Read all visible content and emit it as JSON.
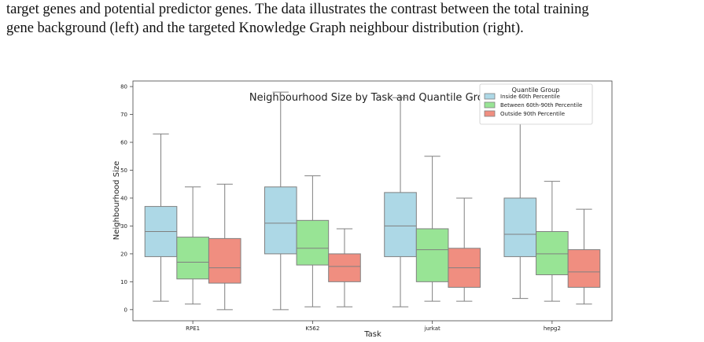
{
  "caption": {
    "line1": "target genes and potential predictor genes. The data illustrates the contrast between the total training",
    "line2": "gene background (left) and the targeted Knowledge Graph neighbour distribution (right)."
  },
  "colors": {
    "inside": "#add8e6",
    "between": "#98e495",
    "outside": "#f08e80",
    "box_edge": "#808080"
  },
  "chart_data": {
    "type": "box",
    "title": "Neighbourhood Size by Task and Quantile Group",
    "xlabel": "Task",
    "ylabel": "Neighbourhood Size",
    "ylim": [
      -4,
      82
    ],
    "yticks": [
      0,
      10,
      20,
      30,
      40,
      50,
      60,
      70,
      80
    ],
    "grid": false,
    "legend": {
      "title": "Quantile Group",
      "placement": "top-right"
    },
    "categories": [
      "RPE1",
      "K562",
      "jurkat",
      "hepg2"
    ],
    "series": [
      {
        "name": "Inside 60th Percentile",
        "color": "#add8e6",
        "boxes": [
          {
            "whislo": 3,
            "q1": 19,
            "med": 28,
            "q3": 37,
            "whishi": 63
          },
          {
            "whislo": 0,
            "q1": 20,
            "med": 31,
            "q3": 44,
            "whishi": 78
          },
          {
            "whislo": 1,
            "q1": 19,
            "med": 30,
            "q3": 42,
            "whishi": 76
          },
          {
            "whislo": 4,
            "q1": 19,
            "med": 27,
            "q3": 40,
            "whishi": 70
          }
        ]
      },
      {
        "name": "Between 60th-90th Percentile",
        "color": "#98e495",
        "boxes": [
          {
            "whislo": 2,
            "q1": 11,
            "med": 17,
            "q3": 26,
            "whishi": 44
          },
          {
            "whislo": 1,
            "q1": 16,
            "med": 22,
            "q3": 32,
            "whishi": 48
          },
          {
            "whislo": 3,
            "q1": 10,
            "med": 21.5,
            "q3": 29,
            "whishi": 55
          },
          {
            "whislo": 3,
            "q1": 12.5,
            "med": 20,
            "q3": 28,
            "whishi": 46
          }
        ]
      },
      {
        "name": "Outside 90th Percentile",
        "color": "#f08e80",
        "boxes": [
          {
            "whislo": 0,
            "q1": 9.5,
            "med": 15,
            "q3": 25.5,
            "whishi": 45
          },
          {
            "whislo": 1,
            "q1": 10,
            "med": 15.5,
            "q3": 20,
            "whishi": 29
          },
          {
            "whislo": 3,
            "q1": 8,
            "med": 15,
            "q3": 22,
            "whishi": 40
          },
          {
            "whislo": 2,
            "q1": 8,
            "med": 13.5,
            "q3": 21.5,
            "whishi": 36
          }
        ]
      }
    ]
  }
}
